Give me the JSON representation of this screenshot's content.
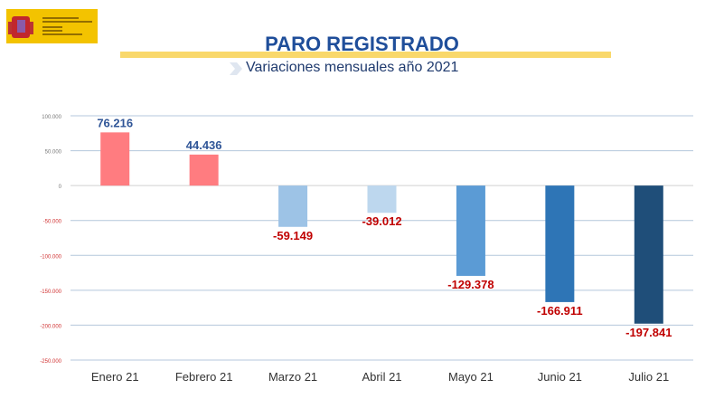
{
  "header": {
    "title": "PARO REGISTRADO",
    "subtitle": "Variaciones mensuales año 2021"
  },
  "chart_data": {
    "type": "bar",
    "title": "PARO REGISTRADO",
    "subtitle": "Variaciones mensuales año 2021",
    "xlabel": "",
    "ylabel": "",
    "categories": [
      "Enero 21",
      "Febrero 21",
      "Marzo 21",
      "Abril 21",
      "Mayo 21",
      "Junio 21",
      "Julio 21"
    ],
    "values": [
      76216,
      44436,
      -59149,
      -39012,
      -129378,
      -166911,
      -197841
    ],
    "data_labels": [
      "76.216",
      "44.436",
      "-59.149",
      "-39.012",
      "-129.378",
      "-166.911",
      "-197.841"
    ],
    "bar_colors": [
      "#ff7c80",
      "#ff7c80",
      "#9dc3e6",
      "#bdd7ee",
      "#5b9bd5",
      "#2e75b6",
      "#1f4e79"
    ],
    "ylim": [
      -250000,
      100000
    ],
    "yticks": [
      100000,
      50000,
      0,
      -50000,
      -100000,
      -150000,
      -200000,
      -250000
    ],
    "ytick_labels": [
      "100.000",
      "50.000",
      "0",
      "-50.000",
      "-100.000",
      "-150.000",
      "-200.000",
      "-250.000"
    ],
    "grid": true,
    "positive_label_color": "#2f5597",
    "negative_label_color": "#c00000"
  }
}
